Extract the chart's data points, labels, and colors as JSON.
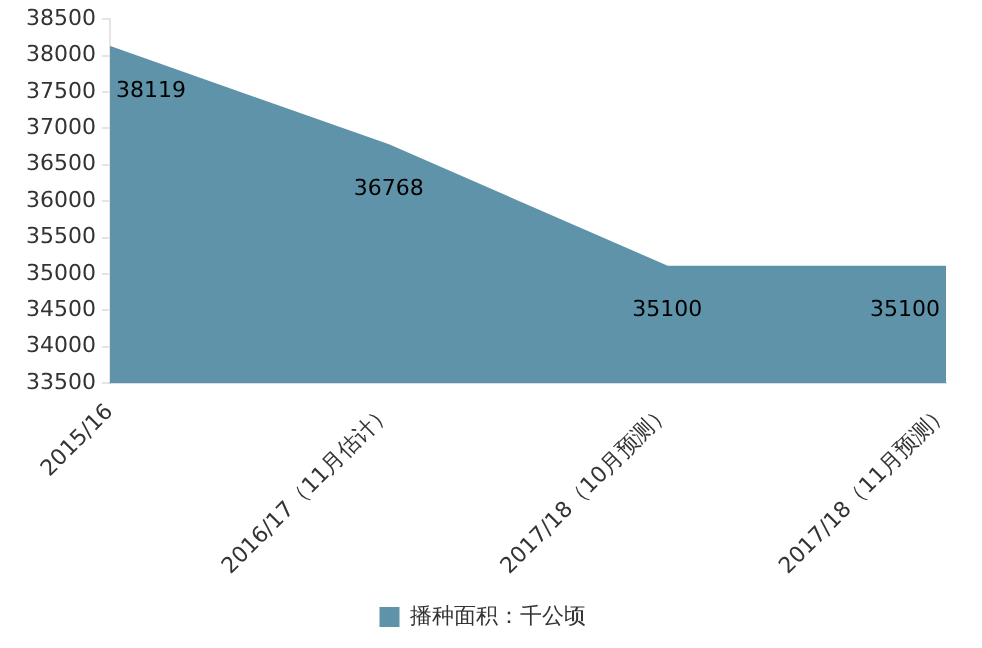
{
  "chart_data": {
    "type": "area",
    "categories": [
      "2015/16",
      "2016/17（11月估计）",
      "2017/18（10月预测）",
      "2017/18（11月预测）"
    ],
    "series": [
      {
        "name": "播种面积：千公顷",
        "color": "#5f93a9",
        "values": [
          38119,
          36768,
          35100,
          35100
        ]
      }
    ],
    "ylim": [
      33500,
      38500
    ],
    "yticks": [
      33500,
      34000,
      34500,
      35000,
      35500,
      36000,
      36500,
      37000,
      37500,
      38000,
      38500
    ],
    "grid": false,
    "legend": "bottom",
    "data_labels": true
  }
}
